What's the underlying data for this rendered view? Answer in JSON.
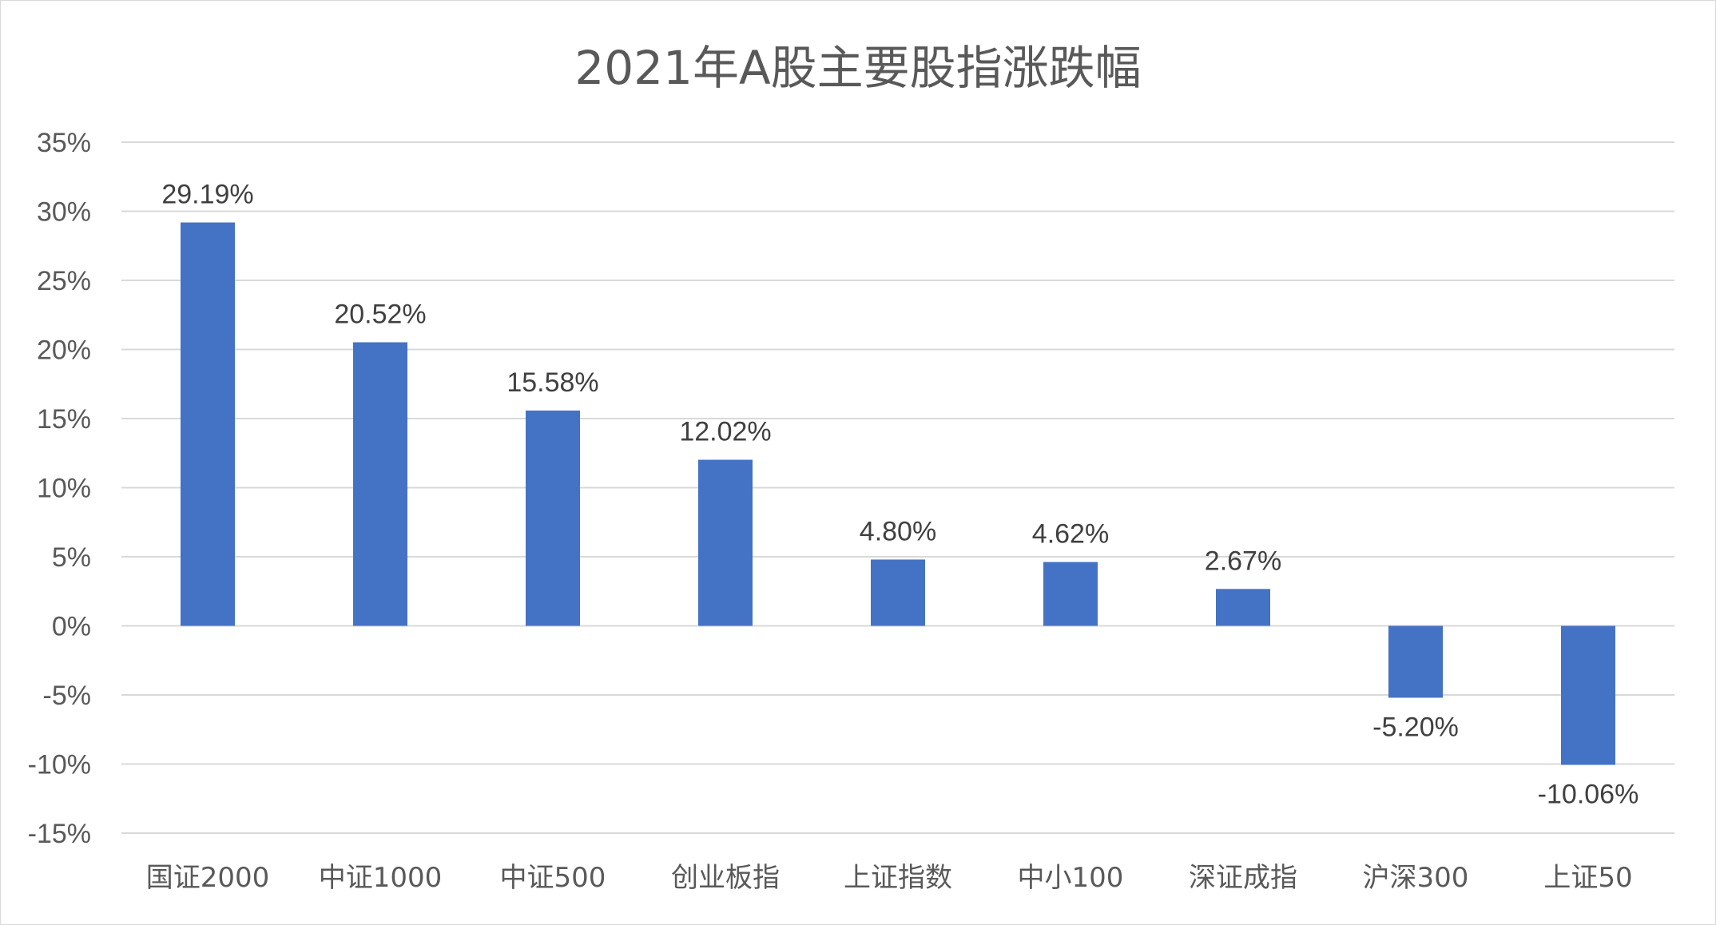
{
  "chart_data": {
    "type": "bar",
    "title": "2021年A股主要股指涨跌幅",
    "categories": [
      "国证2000",
      "中证1000",
      "中证500",
      "创业板指",
      "上证指数",
      "中小100",
      "深证成指",
      "沪深300",
      "上证50"
    ],
    "values": [
      29.19,
      20.52,
      15.58,
      12.02,
      4.8,
      4.62,
      2.67,
      -5.2,
      -10.06
    ],
    "data_labels": [
      "29.19%",
      "20.52%",
      "15.58%",
      "12.02%",
      "4.80%",
      "4.62%",
      "2.67%",
      "-5.20%",
      "-10.06%"
    ],
    "ylim": [
      -15,
      35
    ],
    "yticks": [
      35,
      30,
      25,
      20,
      15,
      10,
      5,
      0,
      -5,
      -10,
      -15
    ],
    "ytick_labels": [
      "35%",
      "30%",
      "25%",
      "20%",
      "15%",
      "10%",
      "5%",
      "0%",
      "-5%",
      "-10%",
      "-15%"
    ],
    "grid": true,
    "bar_color": "#4472c4",
    "gridline_color": "#d9d9d9",
    "xlabel": "",
    "ylabel": ""
  }
}
